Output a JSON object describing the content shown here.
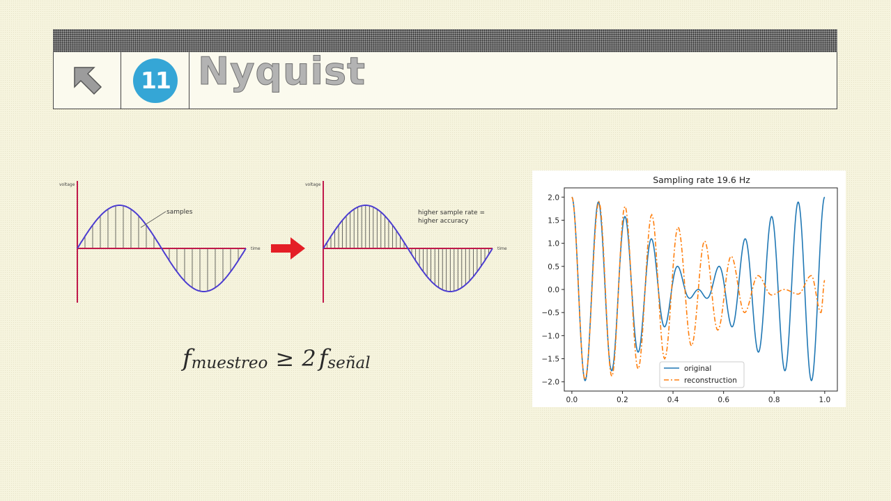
{
  "header": {
    "badge_number": "11",
    "title": "Nyquist",
    "icons": {
      "arrow": "arrow-up-left-icon",
      "badge": "number-badge-icon"
    },
    "colors": {
      "badge": "#35a6d6",
      "title_fill": "#b3b3b3"
    }
  },
  "diagram": {
    "left_panel": {
      "y_label": "voltage",
      "x_label": "time",
      "annotation": "samples",
      "sample_count": 22
    },
    "right_panel": {
      "y_label": "voltage",
      "x_label": "time",
      "annotation_line1": "higher sample rate =",
      "annotation_line2": "higher accuracy",
      "sample_count": 44
    },
    "colors": {
      "axis": "#c0184a",
      "wave": "#4b3cd0",
      "arrow": "#e41e26"
    },
    "arrow_icon": "right-arrow-icon"
  },
  "formula": {
    "f1": "f",
    "sub1": "muestreo",
    "op": "≥",
    "num": "2",
    "f2": "f",
    "sub2": "señal"
  },
  "chart_data": {
    "type": "line",
    "title": "Sampling rate 19.6 Hz",
    "xlabel": "",
    "ylabel": "",
    "xlim": [
      -0.03,
      1.05
    ],
    "ylim": [
      -2.2,
      2.2
    ],
    "xticks": [
      "0.0",
      "0.2",
      "0.4",
      "0.6",
      "0.8",
      "1.0"
    ],
    "yticks": [
      "2.0",
      "1.5",
      "1.0",
      "0.5",
      "0.0",
      "−0.5",
      "−1.0",
      "−1.5",
      "−2.0"
    ],
    "grid": false,
    "legend_position": "lower-center",
    "series": [
      {
        "name": "original",
        "color": "#1f77b4",
        "style": "solid",
        "function": "cos(2*pi*9*t) + cos(2*pi*10*t)",
        "x_range": [
          0,
          1
        ],
        "approx_extrema": [
          [
            0.0,
            2.0
          ],
          [
            0.053,
            -1.97
          ],
          [
            0.105,
            1.88
          ],
          [
            0.158,
            -1.75
          ],
          [
            0.21,
            1.56
          ],
          [
            0.263,
            -1.36
          ],
          [
            0.316,
            1.08
          ],
          [
            0.368,
            -0.8
          ],
          [
            0.42,
            0.5
          ],
          [
            0.5,
            -0.2
          ],
          [
            0.58,
            0.5
          ],
          [
            0.632,
            -0.8
          ],
          [
            0.684,
            1.08
          ],
          [
            0.737,
            -1.36
          ],
          [
            0.79,
            1.56
          ],
          [
            0.842,
            -1.75
          ],
          [
            0.895,
            1.88
          ],
          [
            0.947,
            -1.97
          ],
          [
            1.0,
            2.0
          ]
        ]
      },
      {
        "name": "reconstruction",
        "color": "#ff7f0e",
        "style": "dash-dot",
        "sampling_rate_hz": 19.6,
        "x_range": [
          0,
          1
        ],
        "approx_extrema": [
          [
            0.0,
            2.0
          ],
          [
            0.052,
            -1.95
          ],
          [
            0.107,
            1.9
          ],
          [
            0.158,
            -1.88
          ],
          [
            0.21,
            1.8
          ],
          [
            0.262,
            -1.72
          ],
          [
            0.316,
            1.62
          ],
          [
            0.367,
            -1.5
          ],
          [
            0.42,
            1.35
          ],
          [
            0.473,
            -1.22
          ],
          [
            0.525,
            1.05
          ],
          [
            0.577,
            -0.88
          ],
          [
            0.63,
            0.72
          ],
          [
            0.683,
            -0.5
          ],
          [
            0.736,
            0.3
          ],
          [
            0.79,
            -0.12
          ],
          [
            0.84,
            0.0
          ],
          [
            0.895,
            -0.1
          ],
          [
            0.947,
            0.3
          ],
          [
            0.985,
            -0.5
          ],
          [
            1.0,
            0.2
          ]
        ]
      }
    ]
  }
}
